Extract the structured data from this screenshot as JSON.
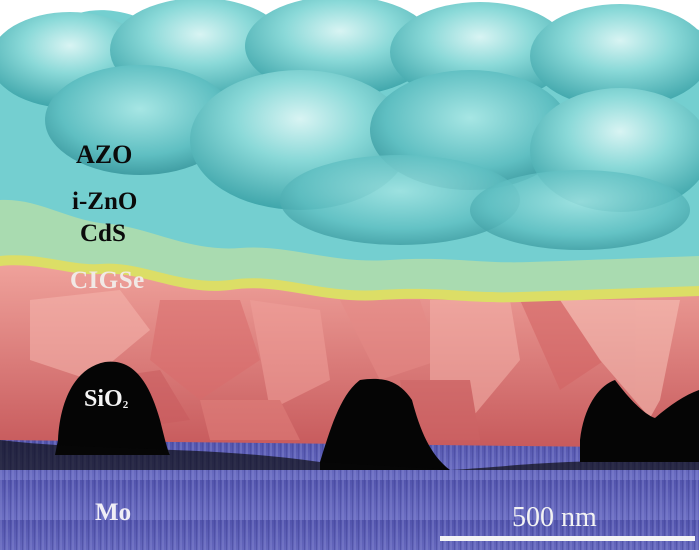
{
  "image": {
    "kind": "false-colored cross-sectional SEM micrograph",
    "layers": [
      {
        "key": "azo",
        "label": "AZO",
        "color": "#6fcfd0"
      },
      {
        "key": "izno",
        "label": "i-ZnO",
        "color": "#9fd6a8"
      },
      {
        "key": "cds",
        "label": "CdS",
        "color": "#d9dc6a"
      },
      {
        "key": "cigse",
        "label": "CIGSe",
        "color": "#e27a78"
      },
      {
        "key": "sio2",
        "label_main": "SiO",
        "label_sub": "2",
        "color": "#050505"
      },
      {
        "key": "mo",
        "label": "Mo",
        "color": "#6a6cc0"
      }
    ],
    "scale_bar": {
      "label": "500 nm"
    }
  }
}
